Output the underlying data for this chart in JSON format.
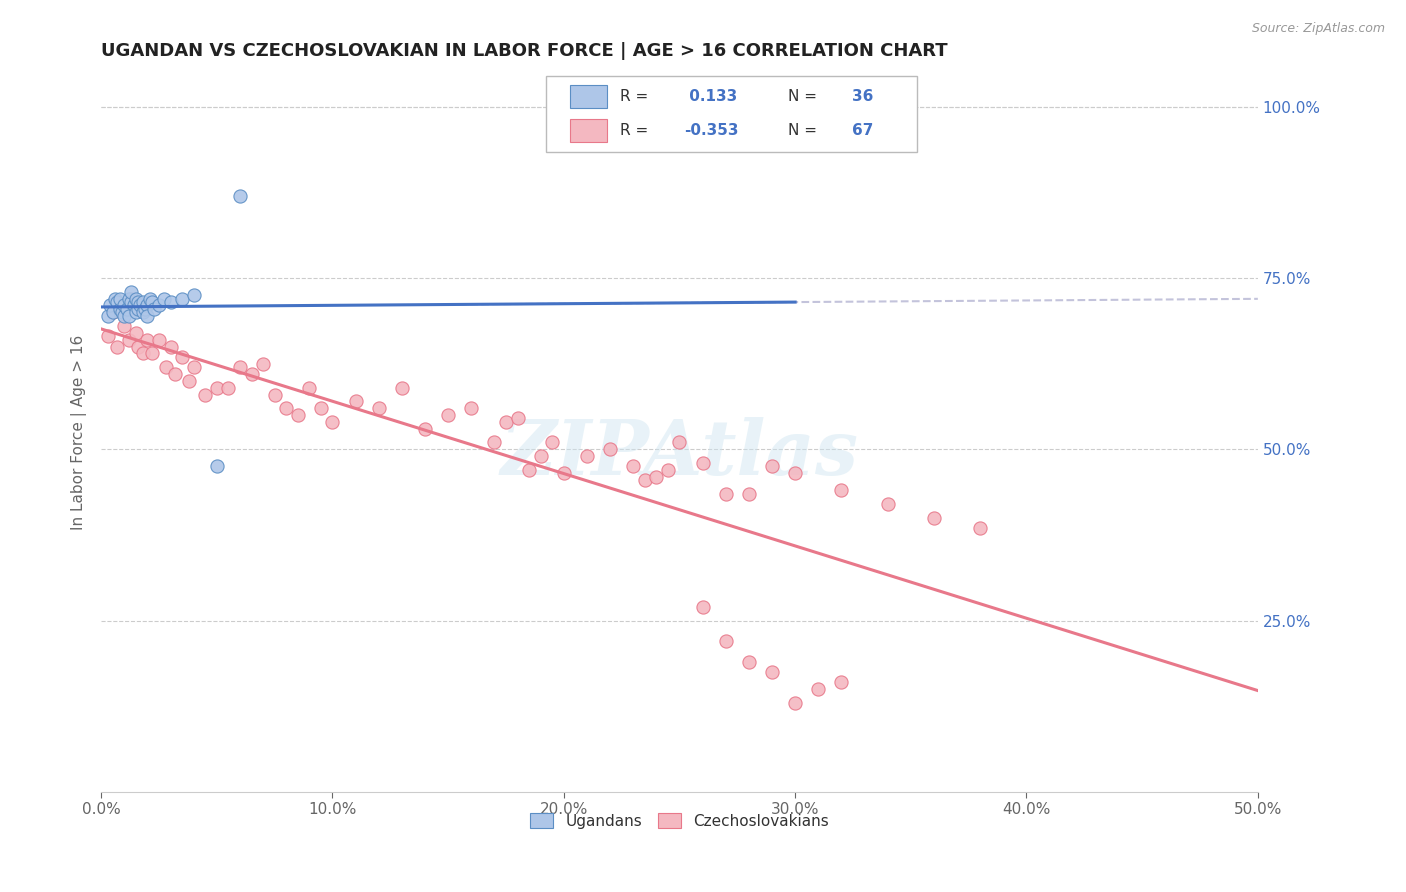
{
  "title": "UGANDAN VS CZECHOSLOVAKIAN IN LABOR FORCE | AGE > 16 CORRELATION CHART",
  "source_text": "Source: ZipAtlas.com",
  "ylabel": "In Labor Force | Age > 16",
  "xlim": [
    0.0,
    0.5
  ],
  "ylim": [
    0.0,
    1.05
  ],
  "xtick_labels": [
    "0.0%",
    "10.0%",
    "20.0%",
    "30.0%",
    "40.0%",
    "50.0%"
  ],
  "xtick_values": [
    0.0,
    0.1,
    0.2,
    0.3,
    0.4,
    0.5
  ],
  "ytick_right_labels": [
    "25.0%",
    "50.0%",
    "75.0%",
    "100.0%"
  ],
  "ytick_right_values": [
    0.25,
    0.5,
    0.75,
    1.0
  ],
  "ugandan_color": "#aec6e8",
  "czechoslovakian_color": "#f4b8c1",
  "ugandan_edge_color": "#5b8ec4",
  "czechoslovakian_edge_color": "#e8788a",
  "ugandan_line_color": "#4472c4",
  "czechoslovakian_line_color": "#e8788a",
  "dashed_line_color": "#aec6e8",
  "r_ugandan": 0.133,
  "n_ugandan": 36,
  "r_czechoslovakian": -0.353,
  "n_czechoslovakian": 67,
  "legend_label_ugandan": "Ugandans",
  "legend_label_czechoslovakian": "Czechoslovakians",
  "watermark": "ZIPAtlas",
  "background_color": "#ffffff",
  "legend_text_color": "#4472c4",
  "legend_label_color": "#333333",
  "ugandan_x": [
    0.003,
    0.004,
    0.005,
    0.006,
    0.007,
    0.008,
    0.008,
    0.009,
    0.01,
    0.01,
    0.011,
    0.012,
    0.012,
    0.013,
    0.013,
    0.014,
    0.015,
    0.015,
    0.016,
    0.016,
    0.017,
    0.018,
    0.018,
    0.019,
    0.02,
    0.02,
    0.021,
    0.022,
    0.023,
    0.025,
    0.027,
    0.03,
    0.035,
    0.04,
    0.05,
    0.06
  ],
  "ugandan_y": [
    0.695,
    0.71,
    0.7,
    0.72,
    0.715,
    0.705,
    0.72,
    0.7,
    0.695,
    0.71,
    0.705,
    0.72,
    0.695,
    0.715,
    0.73,
    0.71,
    0.7,
    0.72,
    0.705,
    0.715,
    0.71,
    0.7,
    0.715,
    0.705,
    0.71,
    0.695,
    0.72,
    0.715,
    0.705,
    0.71,
    0.72,
    0.715,
    0.72,
    0.725,
    0.475,
    0.87
  ],
  "czechoslovakian_x": [
    0.003,
    0.005,
    0.007,
    0.009,
    0.01,
    0.012,
    0.013,
    0.015,
    0.016,
    0.018,
    0.02,
    0.022,
    0.025,
    0.028,
    0.03,
    0.032,
    0.035,
    0.038,
    0.04,
    0.045,
    0.05,
    0.055,
    0.06,
    0.065,
    0.07,
    0.075,
    0.08,
    0.085,
    0.09,
    0.095,
    0.1,
    0.11,
    0.12,
    0.13,
    0.14,
    0.15,
    0.16,
    0.17,
    0.175,
    0.18,
    0.185,
    0.19,
    0.195,
    0.2,
    0.21,
    0.22,
    0.23,
    0.235,
    0.24,
    0.245,
    0.25,
    0.26,
    0.27,
    0.28,
    0.29,
    0.3,
    0.32,
    0.34,
    0.36,
    0.38,
    0.26,
    0.27,
    0.28,
    0.29,
    0.3,
    0.31,
    0.32
  ],
  "czechoslovakian_y": [
    0.665,
    0.7,
    0.65,
    0.71,
    0.68,
    0.66,
    0.72,
    0.67,
    0.65,
    0.64,
    0.66,
    0.64,
    0.66,
    0.62,
    0.65,
    0.61,
    0.635,
    0.6,
    0.62,
    0.58,
    0.59,
    0.59,
    0.62,
    0.61,
    0.625,
    0.58,
    0.56,
    0.55,
    0.59,
    0.56,
    0.54,
    0.57,
    0.56,
    0.59,
    0.53,
    0.55,
    0.56,
    0.51,
    0.54,
    0.545,
    0.47,
    0.49,
    0.51,
    0.465,
    0.49,
    0.5,
    0.475,
    0.455,
    0.46,
    0.47,
    0.51,
    0.48,
    0.435,
    0.435,
    0.475,
    0.465,
    0.44,
    0.42,
    0.4,
    0.385,
    0.27,
    0.22,
    0.19,
    0.175,
    0.13,
    0.15,
    0.16
  ]
}
